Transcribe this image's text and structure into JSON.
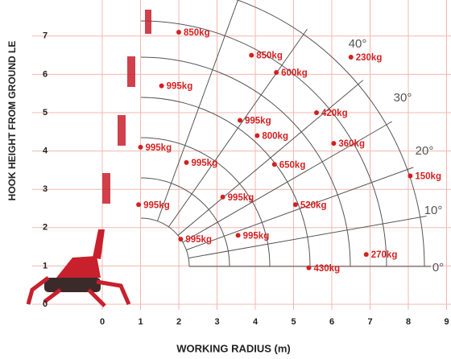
{
  "chart_data": {
    "type": "scatter",
    "xlabel": "WORKING RADIUS (m)",
    "ylabel": "HOOK HEIGHT FROM GROUND LE",
    "xlim": [
      0,
      9
    ],
    "xticks": [
      0,
      1,
      2,
      3,
      4,
      5,
      6,
      7,
      8,
      9
    ],
    "ylim": [
      0,
      7
    ],
    "yticks": [
      0,
      1,
      2,
      3,
      4,
      5,
      6,
      7
    ],
    "grid": true,
    "angle_labels": [
      "40°",
      "30°",
      "20°",
      "10°",
      "0°"
    ],
    "color": "#d42020",
    "x": [
      2.0,
      3.9,
      6.5,
      1.55,
      4.55,
      3.6,
      5.6,
      4.05,
      6.05,
      1.0,
      2.2,
      4.5,
      8.05,
      0.95,
      3.15,
      5.05,
      2.05,
      3.55,
      6.9,
      5.4
    ],
    "y": [
      7.1,
      6.5,
      6.45,
      5.7,
      6.05,
      4.8,
      5.0,
      4.4,
      4.2,
      4.1,
      3.7,
      3.65,
      3.35,
      2.6,
      2.8,
      2.6,
      1.7,
      1.8,
      1.3,
      0.95
    ],
    "point_labels": [
      "850kg",
      "850kg",
      "230kg",
      "995kg",
      "600kg",
      "995kg",
      "420kg",
      "800kg",
      "360kg",
      "995kg",
      "995kg",
      "650kg",
      "150kg",
      "995kg",
      "995kg",
      "520kg",
      "995kg",
      "995kg",
      "270kg",
      "430kg"
    ]
  }
}
